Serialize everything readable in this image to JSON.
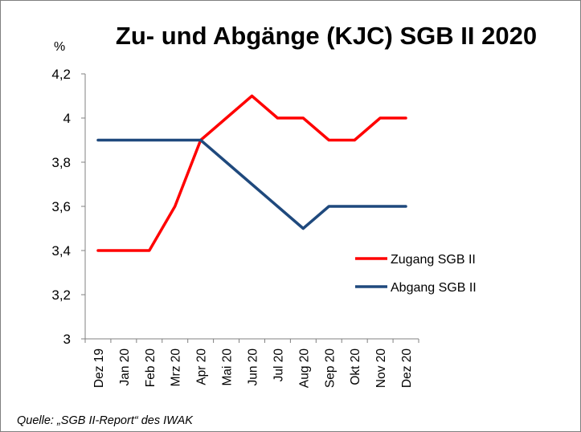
{
  "chart_data": {
    "type": "line",
    "title": "Zu- und Abgänge (KJC) SGB II 2020",
    "ylabel": "%",
    "xlabel": "",
    "categories": [
      "Dez 19",
      "Jan 20",
      "Feb 20",
      "Mrz 20",
      "Apr 20",
      "Mai 20",
      "Jun 20",
      "Jul 20",
      "Aug 20",
      "Sep 20",
      "Okt 20",
      "Nov 20",
      "Dez 20"
    ],
    "y_ticks": [
      "3",
      "3,2",
      "3,4",
      "3,6",
      "3,8",
      "4",
      "4,2"
    ],
    "ylim": [
      3,
      4.2
    ],
    "grid": false,
    "legend_position": "right",
    "series": [
      {
        "name": "Zugang SGB II",
        "color": "#ff0000",
        "values": [
          3.4,
          3.4,
          3.4,
          3.6,
          3.9,
          4.0,
          4.1,
          4.0,
          4.0,
          3.9,
          3.9,
          4.0,
          4.0
        ]
      },
      {
        "name": "Abgang SGB II",
        "color": "#1f497d",
        "values": [
          3.9,
          3.9,
          3.9,
          3.9,
          3.9,
          3.8,
          3.7,
          3.6,
          3.5,
          3.6,
          3.6,
          3.6,
          3.6
        ]
      }
    ],
    "source_note": "Quelle: „SGB II-Report“ des IWAK"
  }
}
